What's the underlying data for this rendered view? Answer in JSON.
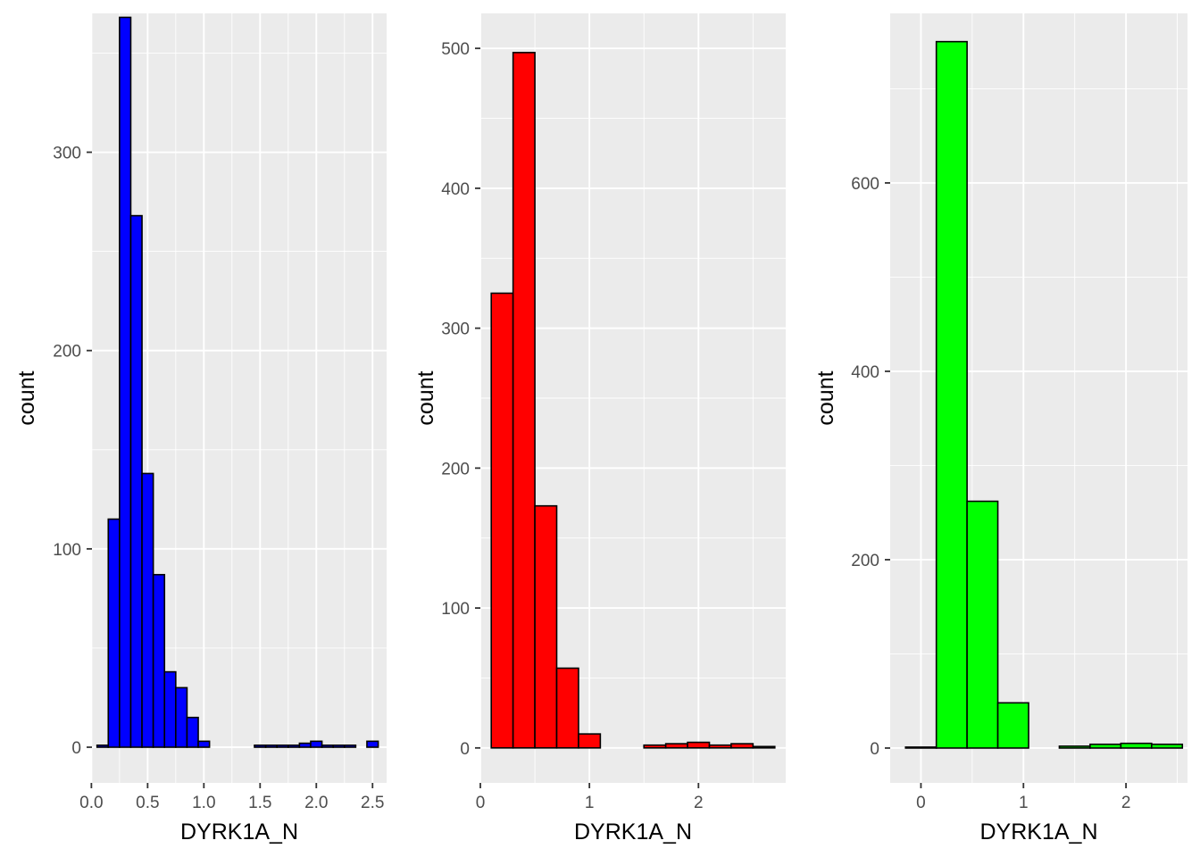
{
  "chart_data": [
    {
      "type": "histogram",
      "fill": "#0000ff",
      "outline": "#000000",
      "xlabel": "DYRK1A_N",
      "ylabel": "count",
      "xlim": [
        0.005,
        2.625
      ],
      "ylim": [
        -18,
        370
      ],
      "x_ticks": [
        {
          "value": 0.0,
          "label": "0.0"
        },
        {
          "value": 0.5,
          "label": "0.5"
        },
        {
          "value": 1.0,
          "label": "1.0"
        },
        {
          "value": 1.5,
          "label": "1.5"
        },
        {
          "value": 2.0,
          "label": "2.0"
        },
        {
          "value": 2.5,
          "label": "2.5"
        }
      ],
      "y_ticks": [
        {
          "value": 0,
          "label": "0"
        },
        {
          "value": 100,
          "label": "100"
        },
        {
          "value": 200,
          "label": "200"
        },
        {
          "value": 300,
          "label": "300"
        }
      ],
      "bins": [
        {
          "x0": 0.05,
          "x1": 0.15,
          "count": 1
        },
        {
          "x0": 0.15,
          "x1": 0.25,
          "count": 115
        },
        {
          "x0": 0.25,
          "x1": 0.35,
          "count": 368
        },
        {
          "x0": 0.35,
          "x1": 0.45,
          "count": 268
        },
        {
          "x0": 0.45,
          "x1": 0.55,
          "count": 138
        },
        {
          "x0": 0.55,
          "x1": 0.65,
          "count": 87
        },
        {
          "x0": 0.65,
          "x1": 0.75,
          "count": 38
        },
        {
          "x0": 0.75,
          "x1": 0.85,
          "count": 30
        },
        {
          "x0": 0.85,
          "x1": 0.95,
          "count": 15
        },
        {
          "x0": 0.95,
          "x1": 1.05,
          "count": 3
        },
        {
          "x0": 1.05,
          "x1": 1.15,
          "count": 0
        },
        {
          "x0": 1.15,
          "x1": 1.25,
          "count": 0
        },
        {
          "x0": 1.25,
          "x1": 1.35,
          "count": 0
        },
        {
          "x0": 1.35,
          "x1": 1.45,
          "count": 0
        },
        {
          "x0": 1.45,
          "x1": 1.55,
          "count": 1
        },
        {
          "x0": 1.55,
          "x1": 1.65,
          "count": 1
        },
        {
          "x0": 1.65,
          "x1": 1.75,
          "count": 1
        },
        {
          "x0": 1.75,
          "x1": 1.85,
          "count": 1
        },
        {
          "x0": 1.85,
          "x1": 1.95,
          "count": 2
        },
        {
          "x0": 1.95,
          "x1": 2.05,
          "count": 3
        },
        {
          "x0": 2.05,
          "x1": 2.15,
          "count": 1
        },
        {
          "x0": 2.15,
          "x1": 2.25,
          "count": 1
        },
        {
          "x0": 2.25,
          "x1": 2.35,
          "count": 1
        },
        {
          "x0": 2.35,
          "x1": 2.45,
          "count": 0
        },
        {
          "x0": 2.45,
          "x1": 2.55,
          "count": 3
        }
      ]
    },
    {
      "type": "histogram",
      "fill": "#ff0000",
      "outline": "#000000",
      "xlabel": "DYRK1A_N",
      "ylabel": "count",
      "xlim": [
        0.0,
        2.8
      ],
      "ylim": [
        -25,
        525
      ],
      "x_ticks": [
        {
          "value": 0,
          "label": "0"
        },
        {
          "value": 1,
          "label": "1"
        },
        {
          "value": 2,
          "label": "2"
        }
      ],
      "y_ticks": [
        {
          "value": 0,
          "label": "0"
        },
        {
          "value": 100,
          "label": "100"
        },
        {
          "value": 200,
          "label": "200"
        },
        {
          "value": 300,
          "label": "300"
        },
        {
          "value": 400,
          "label": "400"
        },
        {
          "value": 500,
          "label": "500"
        }
      ],
      "bins": [
        {
          "x0": 0.1,
          "x1": 0.3,
          "count": 325
        },
        {
          "x0": 0.3,
          "x1": 0.5,
          "count": 497
        },
        {
          "x0": 0.5,
          "x1": 0.7,
          "count": 173
        },
        {
          "x0": 0.7,
          "x1": 0.9,
          "count": 57
        },
        {
          "x0": 0.9,
          "x1": 1.1,
          "count": 10
        },
        {
          "x0": 1.1,
          "x1": 1.3,
          "count": 0
        },
        {
          "x0": 1.3,
          "x1": 1.5,
          "count": 0
        },
        {
          "x0": 1.5,
          "x1": 1.7,
          "count": 2
        },
        {
          "x0": 1.7,
          "x1": 1.9,
          "count": 3
        },
        {
          "x0": 1.9,
          "x1": 2.1,
          "count": 4
        },
        {
          "x0": 2.1,
          "x1": 2.3,
          "count": 2
        },
        {
          "x0": 2.3,
          "x1": 2.5,
          "count": 3
        },
        {
          "x0": 2.5,
          "x1": 2.7,
          "count": 1
        }
      ]
    },
    {
      "type": "histogram",
      "fill": "#00ff00",
      "outline": "#000000",
      "xlabel": "DYRK1A_N",
      "ylabel": "count",
      "xlim": [
        -0.3,
        2.6
      ],
      "ylim": [
        -37,
        780
      ],
      "x_ticks": [
        {
          "value": 0,
          "label": "0"
        },
        {
          "value": 1,
          "label": "1"
        },
        {
          "value": 2,
          "label": "2"
        }
      ],
      "y_ticks": [
        {
          "value": 0,
          "label": "0"
        },
        {
          "value": 200,
          "label": "200"
        },
        {
          "value": 400,
          "label": "400"
        },
        {
          "value": 600,
          "label": "600"
        }
      ],
      "bins": [
        {
          "x0": -0.15,
          "x1": 0.15,
          "count": 1
        },
        {
          "x0": 0.15,
          "x1": 0.45,
          "count": 750
        },
        {
          "x0": 0.45,
          "x1": 0.75,
          "count": 262
        },
        {
          "x0": 0.75,
          "x1": 1.05,
          "count": 48
        },
        {
          "x0": 1.05,
          "x1": 1.35,
          "count": 0
        },
        {
          "x0": 1.35,
          "x1": 1.65,
          "count": 2
        },
        {
          "x0": 1.65,
          "x1": 1.95,
          "count": 4
        },
        {
          "x0": 1.95,
          "x1": 2.25,
          "count": 5
        },
        {
          "x0": 2.25,
          "x1": 2.55,
          "count": 4
        }
      ]
    }
  ]
}
